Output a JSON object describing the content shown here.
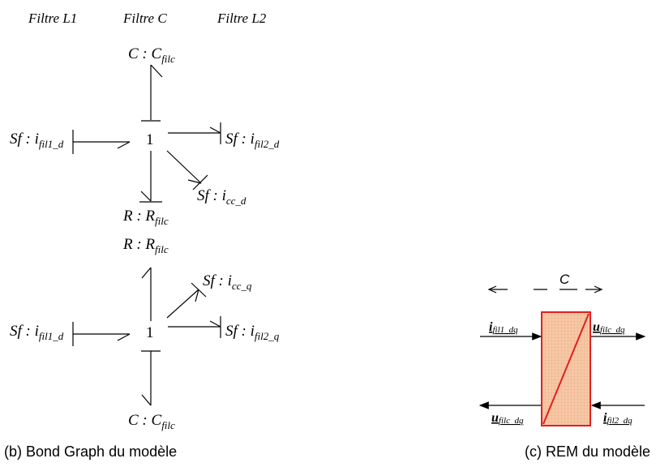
{
  "headers": [
    "Filtre L1",
    "Filtre C",
    "Filtre L2"
  ],
  "bond_graph_d": {
    "top": {
      "main": "C : C",
      "sub": "filc"
    },
    "left": {
      "main": "Sf : i",
      "sub": "fil1_d"
    },
    "junction": "1",
    "right": {
      "main": "Sf : i",
      "sub": "fil2_d"
    },
    "diagonal": {
      "main": "Sf : i",
      "sub": "cc_d"
    },
    "bottom": {
      "main": "R : R",
      "sub": "filc"
    }
  },
  "bond_graph_q": {
    "top": {
      "main": "R : R",
      "sub": "filc"
    },
    "diagonal": {
      "main": "Sf : i",
      "sub": "cc_q"
    },
    "left": {
      "main": "Sf : i",
      "sub": "fil1_d"
    },
    "junction": "1",
    "right": {
      "main": "Sf : i",
      "sub": "fil2_q"
    },
    "bottom": {
      "main": "C : C",
      "sub": "filc"
    }
  },
  "rem": {
    "element": "C",
    "in_left": {
      "main": "i",
      "sub": "fil1_dq"
    },
    "out_right": {
      "main": "u",
      "sub": "filc_dq"
    },
    "out_left": {
      "main": "u",
      "sub": "filc_dq"
    },
    "in_right": {
      "main": "i",
      "sub": "fil2_dq"
    }
  },
  "captions": [
    "(b) Bond Graph du modèle",
    "(c) REM du modèle"
  ]
}
